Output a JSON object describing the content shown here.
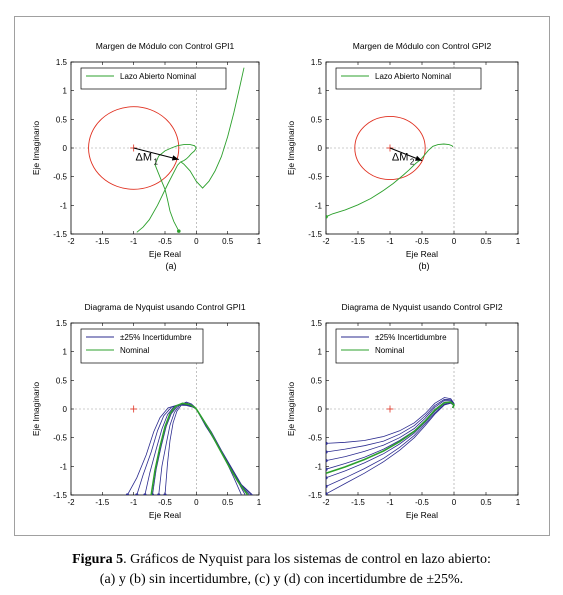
{
  "chart_data": [
    {
      "type": "line",
      "panel_label": "(a)",
      "title": "Margen de Módulo con Control GPI1",
      "xlabel": "Eje Real",
      "ylabel": "Eje Imaginario",
      "xlim": [
        -2,
        1
      ],
      "ylim": [
        -1.5,
        1.5
      ],
      "xticks": [
        "-2",
        "-1.5",
        "-1",
        "-0.5",
        "0",
        "0.5",
        "1"
      ],
      "yticks": [
        "-1.5",
        "-1",
        "-0.5",
        "0",
        "0.5",
        "1",
        "1.5"
      ],
      "legend_placement": "top-left",
      "legend": [
        "Lazo Abierto Nominal"
      ],
      "critical_point": [
        -1,
        0
      ],
      "circle": {
        "center": [
          -1,
          0
        ],
        "radius": 0.72,
        "color": "#e03020"
      },
      "margin_vector": {
        "label": "ΔM",
        "subscript": "1",
        "from": [
          -1,
          0
        ],
        "to": [
          -0.28,
          -0.2
        ]
      },
      "series": [
        {
          "name": "Lazo Abierto Nominal",
          "color": "#2ca02c",
          "x": [
            -0.28,
            -0.36,
            -0.42,
            -0.46,
            -0.5,
            -0.56,
            -0.62,
            -0.66,
            -0.6,
            -0.5,
            -0.4,
            -0.3,
            -0.2,
            -0.1,
            -0.03,
            0,
            -0.03,
            -0.08,
            -0.12,
            -0.16,
            -0.2,
            -0.22,
            -0.24,
            -0.25
          ],
          "y": [
            -1.45,
            -1.28,
            -1.1,
            -0.9,
            -0.72,
            -0.56,
            -0.4,
            -0.29,
            -0.14,
            -0.05,
            0.0,
            0.04,
            0.06,
            0.06,
            0.04,
            0.0,
            -0.05,
            -0.1,
            -0.15,
            -0.19,
            -0.22,
            -0.23,
            -0.24,
            -0.24
          ]
        },
        {
          "name": "",
          "color": "#2ca02c",
          "x": [
            -0.25,
            -0.2,
            -0.1,
            0.0,
            0.1,
            0.2,
            0.3,
            0.4,
            0.5,
            0.6,
            0.7,
            0.76
          ],
          "y": [
            -0.24,
            -0.28,
            -0.4,
            -0.58,
            -0.7,
            -0.58,
            -0.4,
            -0.15,
            0.2,
            0.62,
            1.1,
            1.4
          ]
        },
        {
          "name": "",
          "color": "#2ca02c",
          "x": [
            -0.25,
            -0.3,
            -0.45,
            -0.62,
            -0.75,
            -0.85,
            -0.95
          ],
          "y": [
            -0.24,
            -0.3,
            -0.62,
            -1.0,
            -1.25,
            -1.38,
            -1.47
          ]
        }
      ]
    },
    {
      "type": "line",
      "panel_label": "(b)",
      "title": "Margen de Módulo con Control GPI2",
      "xlabel": "Eje Real",
      "ylabel": "Eje Imaginario",
      "xlim": [
        -2,
        1
      ],
      "ylim": [
        -1.5,
        1.5
      ],
      "xticks": [
        "-2",
        "-1.5",
        "-1",
        "-0.5",
        "0",
        "0.5",
        "1"
      ],
      "yticks": [
        "-1.5",
        "-1",
        "-0.5",
        "0",
        "0.5",
        "1",
        "1.5"
      ],
      "legend_placement": "top-left",
      "legend": [
        "Lazo Abierto Nominal"
      ],
      "critical_point": [
        -1,
        0
      ],
      "circle": {
        "center": [
          -1,
          0
        ],
        "radius": 0.55,
        "color": "#e03020"
      },
      "margin_vector": {
        "label": "ΔM",
        "subscript": "2",
        "from": [
          -1,
          0
        ],
        "to": [
          -0.5,
          -0.22
        ]
      },
      "series": [
        {
          "name": "Lazo Abierto Nominal",
          "color": "#2ca02c",
          "x": [
            -2.0,
            -1.9,
            -1.7,
            -1.5,
            -1.3,
            -1.1,
            -0.95,
            -0.8,
            -0.7,
            -0.6,
            -0.52,
            -0.46,
            -0.4,
            -0.33,
            -0.25,
            -0.16,
            -0.08,
            -0.03,
            -0.02
          ],
          "y": [
            -1.2,
            -1.15,
            -1.08,
            -0.99,
            -0.88,
            -0.74,
            -0.62,
            -0.48,
            -0.38,
            -0.27,
            -0.2,
            -0.12,
            -0.04,
            0.03,
            0.06,
            0.07,
            0.06,
            0.04,
            0.02
          ]
        }
      ]
    },
    {
      "type": "line",
      "panel_label": "(c)",
      "title": "Diagrama de Nyquist usando Control GPI1",
      "xlabel": "Eje Real",
      "ylabel": "Eje Imaginario",
      "xlim": [
        -2,
        1
      ],
      "ylim": [
        -1.5,
        1.5
      ],
      "xticks": [
        "-2",
        "-1.5",
        "-1",
        "-0.5",
        "0",
        "0.5",
        "1"
      ],
      "yticks": [
        "-1.5",
        "-1",
        "-0.5",
        "0",
        "0.5",
        "1",
        "1.5"
      ],
      "legend_placement": "top-left",
      "legend": [
        "±25% Incertidumbre",
        "Nominal"
      ],
      "critical_point": [
        -1,
        0
      ],
      "series": [
        {
          "name": "±25% Incertidumbre",
          "color": "#2b2b8f",
          "family": [
            {
              "x": [
                -1.1,
                -0.95,
                -0.8,
                -0.68,
                -0.58,
                -0.45,
                -0.3,
                -0.15,
                -0.05,
                0.0,
                0.05,
                0.15,
                0.3,
                0.45,
                0.6,
                0.72
              ],
              "y": [
                -1.5,
                -1.2,
                -0.8,
                -0.4,
                -0.15,
                0.02,
                0.07,
                0.06,
                0.03,
                0.0,
                -0.1,
                -0.3,
                -0.55,
                -0.85,
                -1.2,
                -1.5
              ]
            },
            {
              "x": [
                -0.95,
                -0.85,
                -0.72,
                -0.62,
                -0.52,
                -0.4,
                -0.27,
                -0.14,
                -0.05,
                0.0,
                0.06,
                0.16,
                0.32,
                0.48,
                0.64,
                0.78
              ],
              "y": [
                -1.5,
                -1.15,
                -0.75,
                -0.38,
                -0.12,
                0.03,
                0.08,
                0.07,
                0.03,
                0.0,
                -0.1,
                -0.3,
                -0.6,
                -0.9,
                -1.22,
                -1.5
              ]
            },
            {
              "x": [
                -0.82,
                -0.74,
                -0.64,
                -0.55,
                -0.46,
                -0.36,
                -0.24,
                -0.12,
                -0.04,
                0.0,
                0.06,
                0.18,
                0.34,
                0.5,
                0.66,
                0.82
              ],
              "y": [
                -1.5,
                -1.1,
                -0.7,
                -0.35,
                -0.1,
                0.04,
                0.09,
                0.07,
                0.03,
                0.0,
                -0.12,
                -0.34,
                -0.64,
                -0.95,
                -1.25,
                -1.5
              ]
            },
            {
              "x": [
                -0.7,
                -0.64,
                -0.56,
                -0.48,
                -0.4,
                -0.3,
                -0.2,
                -0.1,
                -0.03,
                0.0,
                0.07,
                0.2,
                0.36,
                0.52,
                0.68,
                0.85
              ],
              "y": [
                -1.5,
                -1.05,
                -0.65,
                -0.3,
                -0.08,
                0.05,
                0.1,
                0.08,
                0.03,
                0.0,
                -0.12,
                -0.36,
                -0.68,
                -0.98,
                -1.28,
                -1.5
              ]
            },
            {
              "x": [
                -0.6,
                -0.55,
                -0.48,
                -0.42,
                -0.35,
                -0.27,
                -0.18,
                -0.09,
                -0.03,
                0.0,
                0.08,
                0.22,
                0.38,
                0.54,
                0.7,
                0.88
              ],
              "y": [
                -1.5,
                -1.0,
                -0.6,
                -0.28,
                -0.06,
                0.06,
                0.11,
                0.08,
                0.03,
                0.0,
                -0.14,
                -0.38,
                -0.7,
                -1.0,
                -1.3,
                -1.5
              ]
            },
            {
              "x": [
                -0.5,
                -0.46,
                -0.42,
                -0.37,
                -0.31,
                -0.24,
                -0.16,
                -0.08,
                -0.02,
                0.0,
                0.09,
                0.24,
                0.4,
                0.56,
                0.72,
                0.9
              ],
              "y": [
                -1.5,
                -0.95,
                -0.55,
                -0.24,
                -0.04,
                0.07,
                0.12,
                0.09,
                0.03,
                0.0,
                -0.15,
                -0.4,
                -0.72,
                -1.02,
                -1.32,
                -1.5
              ]
            }
          ]
        },
        {
          "name": "Nominal",
          "color": "#2ca02c",
          "x": [
            -0.72,
            -0.66,
            -0.58,
            -0.5,
            -0.42,
            -0.33,
            -0.22,
            -0.11,
            -0.03,
            0.0,
            0.07,
            0.2,
            0.35,
            0.5,
            0.66,
            0.82
          ],
          "y": [
            -1.5,
            -1.07,
            -0.66,
            -0.31,
            -0.08,
            0.05,
            0.1,
            0.08,
            0.03,
            0.0,
            -0.12,
            -0.35,
            -0.66,
            -0.96,
            -1.26,
            -1.5
          ]
        }
      ]
    },
    {
      "type": "line",
      "panel_label": "(d)",
      "title": "Diagrama de Nyquist usando Control GPI2",
      "xlabel": "Eje Real",
      "ylabel": "Eje Imaginario",
      "xlim": [
        -2,
        1
      ],
      "ylim": [
        -1.5,
        1.5
      ],
      "xticks": [
        "-2",
        "-1.5",
        "-1",
        "-0.5",
        "0",
        "0.5",
        "1"
      ],
      "yticks": [
        "-1.5",
        "-1",
        "-0.5",
        "0",
        "0.5",
        "1",
        "1.5"
      ],
      "legend_placement": "top-left",
      "legend": [
        "±25% Incertidumbre",
        "Nominal"
      ],
      "critical_point": [
        -1,
        0
      ],
      "series": [
        {
          "name": "±25% Incertidumbre",
          "color": "#2b2b8f",
          "family": [
            {
              "x": [
                -2.0,
                -1.7,
                -1.4,
                -1.1,
                -0.85,
                -0.62,
                -0.45,
                -0.3,
                -0.15,
                -0.05,
                0.0,
                -0.02
              ],
              "y": [
                -0.6,
                -0.58,
                -0.55,
                -0.48,
                -0.38,
                -0.24,
                -0.08,
                0.1,
                0.2,
                0.18,
                0.1,
                0.02
              ]
            },
            {
              "x": [
                -2.0,
                -1.7,
                -1.4,
                -1.1,
                -0.85,
                -0.62,
                -0.45,
                -0.3,
                -0.15,
                -0.05,
                0.0,
                -0.02
              ],
              "y": [
                -0.75,
                -0.7,
                -0.64,
                -0.56,
                -0.44,
                -0.29,
                -0.12,
                0.06,
                0.17,
                0.16,
                0.09,
                0.02
              ]
            },
            {
              "x": [
                -2.0,
                -1.7,
                -1.4,
                -1.1,
                -0.85,
                -0.62,
                -0.45,
                -0.3,
                -0.15,
                -0.05,
                0.0,
                -0.02
              ],
              "y": [
                -0.9,
                -0.83,
                -0.74,
                -0.63,
                -0.5,
                -0.34,
                -0.16,
                0.03,
                0.15,
                0.15,
                0.08,
                0.02
              ]
            },
            {
              "x": [
                -2.0,
                -1.7,
                -1.4,
                -1.1,
                -0.85,
                -0.62,
                -0.45,
                -0.3,
                -0.15,
                -0.05,
                0.0,
                -0.02
              ],
              "y": [
                -1.05,
                -0.95,
                -0.84,
                -0.7,
                -0.55,
                -0.38,
                -0.2,
                -0.01,
                0.12,
                0.13,
                0.07,
                0.02
              ]
            },
            {
              "x": [
                -2.0,
                -1.7,
                -1.4,
                -1.1,
                -0.85,
                -0.62,
                -0.45,
                -0.3,
                -0.15,
                -0.05,
                0.0,
                -0.02
              ],
              "y": [
                -1.2,
                -1.08,
                -0.94,
                -0.78,
                -0.61,
                -0.42,
                -0.23,
                -0.04,
                0.1,
                0.12,
                0.07,
                0.02
              ]
            },
            {
              "x": [
                -2.0,
                -1.7,
                -1.4,
                -1.1,
                -0.85,
                -0.62,
                -0.45,
                -0.3,
                -0.15,
                -0.05,
                0.0,
                -0.02
              ],
              "y": [
                -1.35,
                -1.2,
                -1.04,
                -0.86,
                -0.67,
                -0.46,
                -0.26,
                -0.07,
                0.08,
                0.11,
                0.06,
                0.02
              ]
            },
            {
              "x": [
                -2.0,
                -1.7,
                -1.4,
                -1.1,
                -0.85,
                -0.62,
                -0.45,
                -0.3,
                -0.15,
                -0.05,
                0.0,
                -0.02
              ],
              "y": [
                -1.48,
                -1.3,
                -1.12,
                -0.92,
                -0.72,
                -0.5,
                -0.29,
                -0.09,
                0.07,
                0.1,
                0.06,
                0.02
              ]
            }
          ]
        },
        {
          "name": "Nominal",
          "color": "#2ca02c",
          "x": [
            -2.0,
            -1.7,
            -1.4,
            -1.1,
            -0.85,
            -0.62,
            -0.45,
            -0.3,
            -0.15,
            -0.05,
            0.0,
            -0.02
          ],
          "y": [
            -1.12,
            -1.01,
            -0.88,
            -0.73,
            -0.57,
            -0.39,
            -0.21,
            -0.02,
            0.11,
            0.12,
            0.07,
            0.02
          ]
        }
      ]
    }
  ],
  "caption": {
    "label": "Figura 5",
    "line1": ". Gráficos de Nyquist para los sistemas de control en lazo abierto:",
    "line2": "(a) y (b) sin incertidumbre, (c) y (d) con incertidumbre de ±25%."
  }
}
